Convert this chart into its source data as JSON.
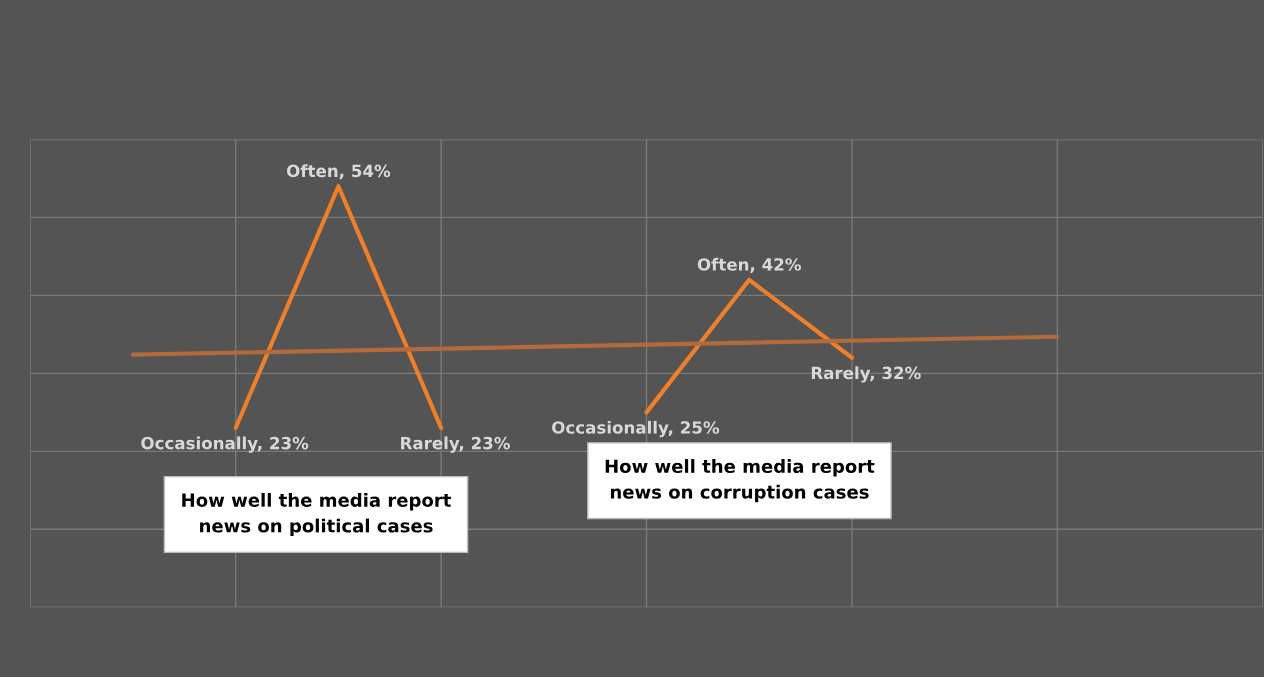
{
  "chart_data": {
    "type": "line",
    "categories": [
      null,
      null,
      null,
      null,
      null,
      null,
      null,
      null,
      null,
      null,
      null,
      null
    ],
    "ylim": [
      0,
      60
    ],
    "yticks": [
      {
        "value": 0,
        "label": null
      },
      {
        "value": 10,
        "label": null
      },
      {
        "value": 20,
        "label": null
      },
      {
        "value": 30,
        "label": null
      },
      {
        "value": 40,
        "label": null
      },
      {
        "value": 50,
        "label": null
      },
      {
        "value": 60,
        "label": null
      }
    ],
    "tick_labels": false,
    "grid": true,
    "series": [
      {
        "color": "#f07f2a",
        "values": [
          null,
          null,
          23,
          54,
          23,
          null,
          null,
          null,
          null,
          null,
          null,
          null
        ],
        "value_labels": [
          null,
          null,
          "Occasionally, 23%",
          "Often, 54%",
          "Rarely, 23%",
          null,
          null,
          null,
          null,
          null,
          null,
          null
        ]
      },
      {
        "color": "#f07f2a",
        "values": [
          null,
          null,
          null,
          null,
          null,
          null,
          25,
          42,
          32,
          null,
          null,
          null
        ],
        "value_labels": [
          null,
          null,
          null,
          null,
          null,
          null,
          "Occasionally, 25%",
          "Often, 42%",
          "Rarely, 32%",
          null,
          null,
          null
        ]
      },
      {
        "type": "line",
        "color": "#b36a3c",
        "values": [
          null,
          32.4,
          null,
          null,
          null,
          null,
          null,
          null,
          null,
          null,
          34.7,
          null
        ]
      }
    ],
    "annotations": [
      "How well the media report\nnews on political cases",
      "How well the media report\nnews on corruption cases"
    ]
  }
}
